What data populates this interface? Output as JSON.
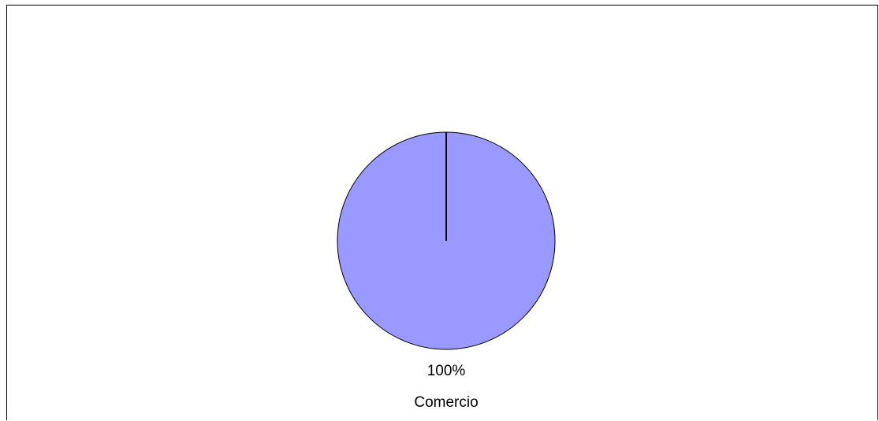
{
  "chart_data": {
    "type": "pie",
    "slices": [
      {
        "label": "Comercio",
        "value": 100,
        "percent_label": "100%",
        "color": "#9999ff"
      }
    ],
    "legend": "none",
    "outline_color": "#000000"
  }
}
